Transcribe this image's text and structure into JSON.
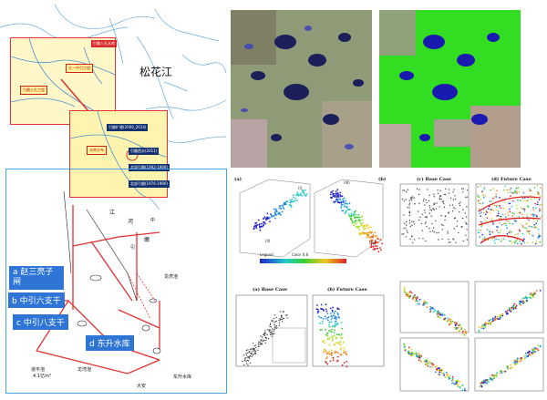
{
  "river_name": "松花江",
  "inset_top": {
    "tag_red": "引嫩入扎水库",
    "tag_yellow": "大一中引工程",
    "tag_left": "引嫩入扎工程"
  },
  "inset_mid": {
    "tag_yellow": "水库分布",
    "tags": [
      "引嫩扩建(2000_2014)",
      "引嫩西水(2011)",
      "北部引嫩(1992-1999)",
      "北部引嫩(1976-1990)"
    ]
  },
  "canal_labels": [
    {
      "id": "a",
      "text": "a 赵三亮子闸"
    },
    {
      "id": "b",
      "text": "b 中引六支干"
    },
    {
      "id": "c",
      "text": "c 中引八支干"
    },
    {
      "id": "d",
      "text": "d 东升水库"
    }
  ],
  "schematic_small": [
    "江",
    "河",
    "嫩",
    "引",
    "中",
    "大安",
    "道平泡",
    "4.1亿m³",
    "龙湾泡",
    "龙虎泡",
    "东升水库"
  ],
  "plots": {
    "top_left_legend": "Legend",
    "top_left_sublabel": "Color 0.8",
    "top_left_a": "(a)",
    "top_left_b": "(b)",
    "roman": [
      "(I)",
      "(II)",
      "(III)",
      "(IV)"
    ],
    "base_case_c": "(c) Base Case",
    "future_case_d": "(d) Future Case",
    "base_case_a": "(a) Base Case",
    "future_case_b": "(b) Future Case"
  },
  "colors": {
    "red_outline": "#e23232",
    "blue_outline": "#4aa3e6",
    "label_blue": "#2e75d6",
    "satellite_green": "#33dd22"
  }
}
